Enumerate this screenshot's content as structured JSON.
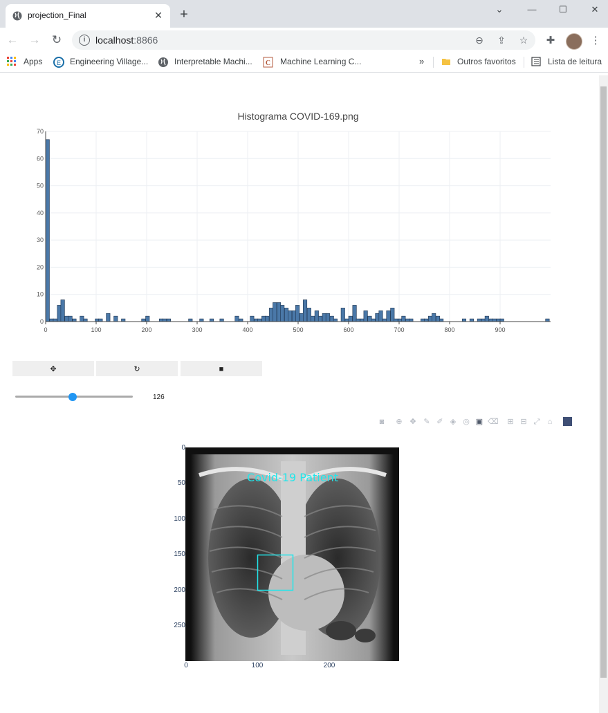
{
  "browser": {
    "tab_title": "projection_Final",
    "url_host": "localhost",
    "url_port": ":8866",
    "bookmarks": [
      {
        "label": "Apps",
        "icon": "apps-grid-icon"
      },
      {
        "label": "Engineering Village...",
        "icon": "engineering-village-icon"
      },
      {
        "label": "Interpretable Machi...",
        "icon": "globe-icon"
      },
      {
        "label": "Machine Learning C...",
        "icon": "c-icon"
      },
      {
        "label": "Outros favoritos",
        "icon": "folder-icon"
      },
      {
        "label": "Lista de leitura",
        "icon": "reading-list-icon"
      }
    ]
  },
  "controls": {
    "buttons": [
      {
        "icon": "move-icon",
        "glyph": "✥"
      },
      {
        "icon": "refresh-icon",
        "glyph": "↻"
      },
      {
        "icon": "save-icon",
        "glyph": "■"
      }
    ],
    "slider_value": "126",
    "slider_fraction": 0.49
  },
  "image_panel": {
    "annotation": "Covid-19 Patient",
    "y_ticks": [
      "0",
      "50",
      "100",
      "150",
      "200",
      "250"
    ],
    "x_ticks": [
      "0",
      "100",
      "200"
    ],
    "box_color": "#21e6ea"
  },
  "chart_data": {
    "type": "bar",
    "title": "Histograma COVID-169.png",
    "xlabel": "",
    "ylabel": "",
    "xlim": [
      0,
      1000
    ],
    "ylim": [
      0,
      70
    ],
    "x_ticks": [
      "0",
      "100",
      "200",
      "300",
      "400",
      "500",
      "600",
      "700",
      "800",
      "900"
    ],
    "y_ticks": [
      "0",
      "10",
      "20",
      "30",
      "40",
      "50",
      "60",
      "70"
    ],
    "bin_width": 7.5,
    "bar_color": "#4a78a8",
    "x": [
      0,
      8,
      15,
      23,
      30,
      38,
      45,
      53,
      68,
      75,
      98,
      105,
      120,
      135,
      150,
      190,
      198,
      225,
      232,
      240,
      283,
      305,
      325,
      345,
      375,
      383,
      405,
      413,
      420,
      428,
      435,
      443,
      450,
      458,
      465,
      473,
      480,
      488,
      495,
      503,
      510,
      518,
      525,
      533,
      540,
      548,
      555,
      563,
      570,
      585,
      593,
      600,
      608,
      615,
      623,
      630,
      638,
      645,
      653,
      660,
      668,
      675,
      683,
      690,
      698,
      705,
      713,
      720,
      743,
      750,
      758,
      765,
      773,
      780,
      825,
      840,
      855,
      863,
      870,
      878,
      885,
      893,
      900,
      990
    ],
    "values": [
      67,
      1,
      1,
      6,
      8,
      2,
      2,
      1,
      2,
      1,
      1,
      1,
      3,
      2,
      1,
      1,
      2,
      1,
      1,
      1,
      1,
      1,
      1,
      1,
      2,
      1,
      2,
      1,
      1,
      2,
      2,
      5,
      7,
      7,
      6,
      5,
      4,
      4,
      6,
      3,
      8,
      5,
      2,
      4,
      2,
      3,
      3,
      2,
      1,
      5,
      1,
      2,
      6,
      1,
      1,
      4,
      2,
      1,
      3,
      4,
      1,
      4,
      5,
      1,
      1,
      2,
      1,
      1,
      1,
      1,
      2,
      3,
      2,
      1,
      1,
      1,
      1,
      1,
      2,
      1,
      1,
      1,
      1,
      1
    ]
  }
}
